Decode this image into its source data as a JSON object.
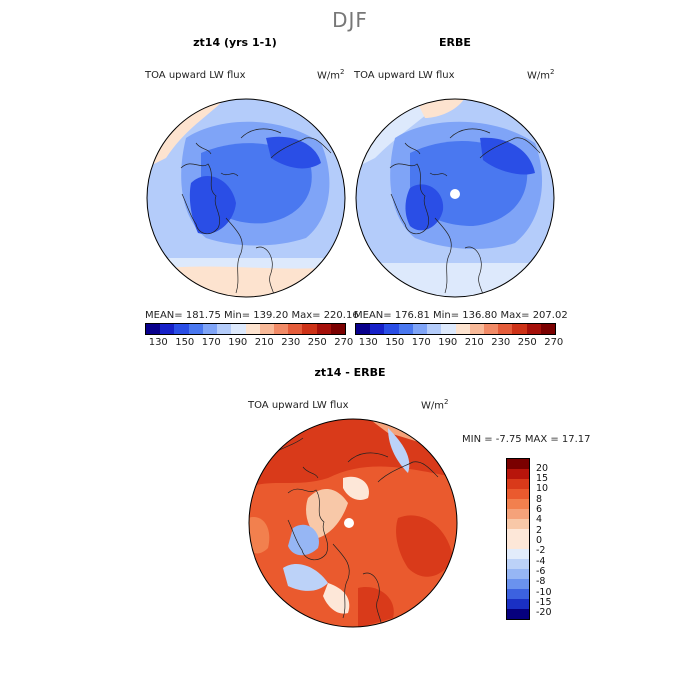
{
  "season": "DJF",
  "panels": [
    {
      "title": "zt14 (yrs 1-1)",
      "variable": "TOA upward LW flux",
      "units": "W/m",
      "units_exp": "2",
      "stats": "MEAN= 181.75  Min= 139.20  Max= 220.16"
    },
    {
      "title": "ERBE",
      "variable": "TOA upward LW flux",
      "units": "W/m",
      "units_exp": "2",
      "stats": "MEAN= 176.81  Min= 136.80  Max= 207.02"
    }
  ],
  "colorbar_ticks": [
    "130",
    "150",
    "170",
    "190",
    "210",
    "230",
    "250",
    "270"
  ],
  "colorbar_colors": [
    "#08008c",
    "#1620c8",
    "#2a4ee6",
    "#4a78f0",
    "#7fa4f7",
    "#b4ccfa",
    "#dde9fc",
    "#fde3cf",
    "#f8b998",
    "#f18a66",
    "#e45c3a",
    "#cd3217",
    "#a5100a",
    "#7a0000"
  ],
  "diff": {
    "title": "zt14 - ERBE",
    "variable": "TOA upward LW flux",
    "units": "W/m",
    "units_exp": "2",
    "stats": "MIN =  -7.75 MAX =  17.17",
    "levels": [
      "20",
      "15",
      "10",
      "8",
      "6",
      "4",
      "2",
      "0",
      "-2",
      "-4",
      "-6",
      "-8",
      "-10",
      "-15",
      "-20"
    ],
    "colors": [
      "#7a0000",
      "#b8150b",
      "#d93a1a",
      "#ea5a2e",
      "#f2804e",
      "#f5a27a",
      "#f8c8a8",
      "#fde7d8",
      "#e2ecfb",
      "#bcd2f8",
      "#96b6f4",
      "#6a92ee",
      "#3c62e0",
      "#1a30c4",
      "#06007e"
    ]
  }
}
